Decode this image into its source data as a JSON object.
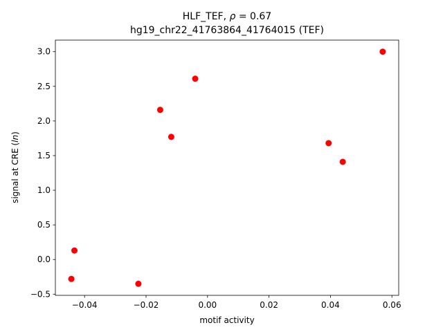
{
  "chart_data": {
    "type": "scatter",
    "title_line1": "HLF_TEF, ρ = 0.67",
    "title_line2": "hg19_chr22_41763864_41764015 (TEF)",
    "xlabel": "motif activity",
    "ylabel": "signal at CRE (ln)",
    "xlim": [
      -0.0495,
      0.0622
    ],
    "ylim": [
      -0.517,
      3.167
    ],
    "x_ticks": [
      -0.04,
      -0.02,
      0.0,
      0.02,
      0.04,
      0.06
    ],
    "x_tick_labels": [
      "−0.04",
      "−0.02",
      "0.00",
      "0.02",
      "0.04",
      "0.06"
    ],
    "y_ticks": [
      -0.5,
      0.0,
      0.5,
      1.0,
      1.5,
      2.0,
      2.5,
      3.0
    ],
    "y_tick_labels": [
      "−0.5",
      "0.0",
      "0.5",
      "1.0",
      "1.5",
      "2.0",
      "2.5",
      "3.0"
    ],
    "point_color": "#ff0000",
    "grid": false,
    "points": [
      {
        "x": -0.0443,
        "y": -0.28
      },
      {
        "x": -0.0433,
        "y": 0.13
      },
      {
        "x": -0.0225,
        "y": -0.35
      },
      {
        "x": -0.0154,
        "y": 2.16
      },
      {
        "x": -0.0118,
        "y": 1.77
      },
      {
        "x": -0.004,
        "y": 2.61
      },
      {
        "x": 0.0394,
        "y": 1.68
      },
      {
        "x": 0.044,
        "y": 1.41
      },
      {
        "x": 0.057,
        "y": 3.0
      }
    ]
  }
}
